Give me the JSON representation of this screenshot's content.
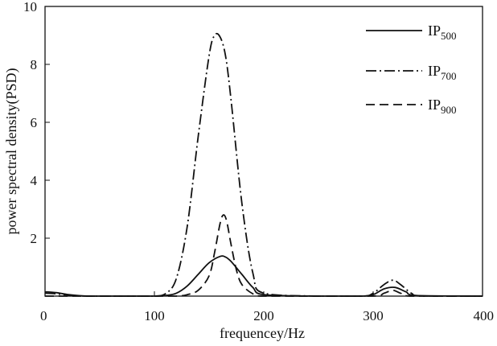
{
  "chart_data": {
    "type": "line",
    "xlabel": "frequencey/Hz",
    "ylabel": "power spectral density(PSD)",
    "xlim": [
      0,
      400
    ],
    "ylim": [
      0,
      10
    ],
    "xticks": [
      0,
      100,
      200,
      300,
      400
    ],
    "yticks": [
      2,
      4,
      6,
      8,
      10
    ],
    "grid": false,
    "legend_position": "top-right",
    "series": [
      {
        "name": "IP500",
        "label_base": "IP",
        "label_sub": "500",
        "style": "solid",
        "x": [
          0,
          10,
          20,
          30,
          40,
          60,
          80,
          100,
          110,
          120,
          130,
          140,
          150,
          160,
          165,
          170,
          180,
          190,
          200,
          250,
          290,
          300,
          310,
          320,
          330,
          340,
          400
        ],
        "y": [
          0.15,
          0.12,
          0.06,
          0.02,
          0.0,
          0.0,
          0.0,
          0.0,
          0.02,
          0.1,
          0.35,
          0.75,
          1.15,
          1.37,
          1.35,
          1.2,
          0.75,
          0.3,
          0.05,
          0.0,
          0.0,
          0.05,
          0.25,
          0.3,
          0.15,
          0.02,
          0.0
        ]
      },
      {
        "name": "IP700",
        "label_base": "IP",
        "label_sub": "700",
        "style": "dashdot",
        "x": [
          0,
          10,
          20,
          30,
          40,
          60,
          80,
          100,
          110,
          120,
          130,
          140,
          150,
          155,
          160,
          165,
          170,
          180,
          190,
          200,
          250,
          290,
          300,
          310,
          318,
          325,
          335,
          345,
          400
        ],
        "y": [
          0.1,
          0.08,
          0.04,
          0.01,
          0.0,
          0.0,
          0.0,
          0.0,
          0.08,
          0.6,
          2.4,
          5.5,
          8.3,
          9.0,
          8.95,
          8.3,
          6.8,
          3.2,
          0.8,
          0.1,
          0.0,
          0.0,
          0.1,
          0.4,
          0.55,
          0.4,
          0.1,
          0.0,
          0.0
        ]
      },
      {
        "name": "IP900",
        "label_base": "IP",
        "label_sub": "900",
        "style": "dashed",
        "x": [
          0,
          100,
          120,
          130,
          140,
          150,
          155,
          160,
          163,
          166,
          170,
          175,
          180,
          190,
          200,
          250,
          300,
          310,
          318,
          325,
          335,
          400
        ],
        "y": [
          0.0,
          0.0,
          0.0,
          0.05,
          0.2,
          0.7,
          1.5,
          2.5,
          2.8,
          2.6,
          1.8,
          0.9,
          0.4,
          0.08,
          0.0,
          0.0,
          0.0,
          0.1,
          0.2,
          0.1,
          0.0,
          0.0
        ]
      }
    ]
  }
}
